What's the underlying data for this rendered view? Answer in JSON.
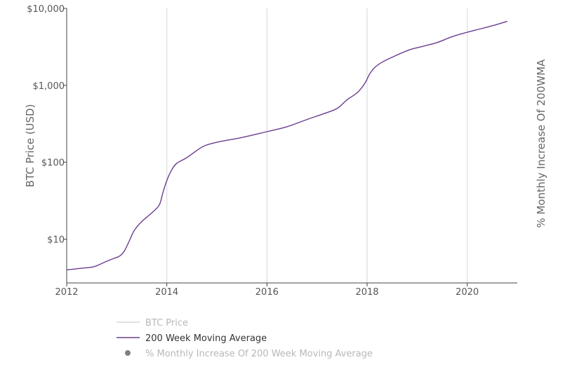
{
  "chart_data": {
    "type": "line",
    "ylabel": "BTC Price (USD)",
    "y2label": "% Monthly Increase Of 200WMA",
    "yscale": "log",
    "ylim": [
      2.7,
      10000
    ],
    "xlim": [
      2012.0,
      2021.0
    ],
    "y_ticks": [
      {
        "value": 10000,
        "label": "$10,000"
      },
      {
        "value": 1000,
        "label": "$1,000"
      },
      {
        "value": 100,
        "label": "$100"
      },
      {
        "value": 10,
        "label": "$10"
      }
    ],
    "x_ticks": [
      {
        "value": 2012,
        "label": "2012"
      },
      {
        "value": 2014,
        "label": "2014"
      },
      {
        "value": 2016,
        "label": "2016"
      },
      {
        "value": 2018,
        "label": "2018"
      },
      {
        "value": 2020,
        "label": "2020"
      }
    ],
    "grid": {
      "vertical": true,
      "horizontal": false
    },
    "legend_position": "bottom-left",
    "series": [
      {
        "name": "BTC Price",
        "color": "#d6d6d6",
        "values": []
      },
      {
        "name": "200 Week Moving Average",
        "color": "#6a3d8f",
        "points": [
          [
            2012.0,
            4.0
          ],
          [
            2012.3,
            4.2
          ],
          [
            2012.55,
            4.4
          ],
          [
            2012.75,
            5.0
          ],
          [
            2012.9,
            5.5
          ],
          [
            2013.05,
            6.0
          ],
          [
            2013.15,
            7.0
          ],
          [
            2013.25,
            9.5
          ],
          [
            2013.35,
            13.0
          ],
          [
            2013.5,
            17.0
          ],
          [
            2013.7,
            22.0
          ],
          [
            2013.85,
            28.0
          ],
          [
            2013.92,
            40.0
          ],
          [
            2014.0,
            58.0
          ],
          [
            2014.1,
            80.0
          ],
          [
            2014.2,
            97.0
          ],
          [
            2014.4,
            115.0
          ],
          [
            2014.65,
            150.0
          ],
          [
            2014.8,
            168.0
          ],
          [
            2015.05,
            185.0
          ],
          [
            2015.5,
            210.0
          ],
          [
            2016.0,
            250.0
          ],
          [
            2016.4,
            290.0
          ],
          [
            2016.8,
            360.0
          ],
          [
            2017.1,
            420.0
          ],
          [
            2017.4,
            500.0
          ],
          [
            2017.6,
            650.0
          ],
          [
            2017.8,
            800.0
          ],
          [
            2017.95,
            1050.0
          ],
          [
            2018.05,
            1400.0
          ],
          [
            2018.15,
            1700.0
          ],
          [
            2018.3,
            2000.0
          ],
          [
            2018.55,
            2400.0
          ],
          [
            2018.85,
            2900.0
          ],
          [
            2019.1,
            3200.0
          ],
          [
            2019.4,
            3600.0
          ],
          [
            2019.7,
            4300.0
          ],
          [
            2020.0,
            4900.0
          ],
          [
            2020.3,
            5500.0
          ],
          [
            2020.6,
            6200.0
          ],
          [
            2020.8,
            6800.0
          ]
        ]
      },
      {
        "name": "% Monthly Increase Of 200 Week Moving Average",
        "color": "#7f7f7f",
        "values": []
      }
    ]
  }
}
